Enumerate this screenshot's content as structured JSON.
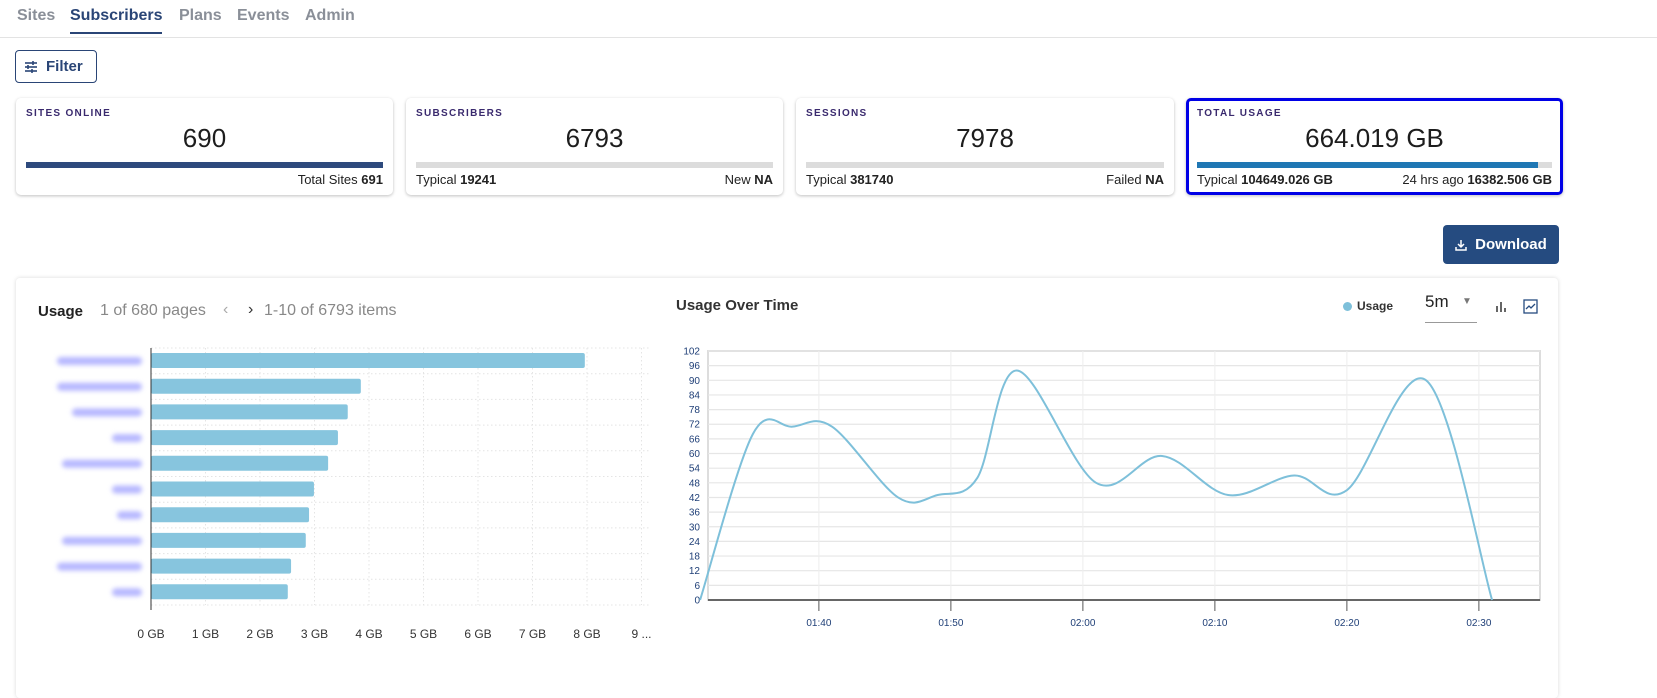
{
  "nav": {
    "tabs": [
      {
        "label": "Sites"
      },
      {
        "label": "Subscribers",
        "active": true
      },
      {
        "label": "Plans"
      },
      {
        "label": "Events"
      },
      {
        "label": "Admin"
      }
    ]
  },
  "filter": {
    "label": "Filter",
    "icon": "sliders-icon"
  },
  "cards": [
    {
      "title": "SITES ONLINE",
      "value": "690",
      "progress": 0.999,
      "bar_color": "#2e4a7d",
      "left_label": "",
      "left_value": "",
      "right_label": "Total Sites",
      "right_value": "691"
    },
    {
      "title": "SUBSCRIBERS",
      "value": "6793",
      "progress": 0,
      "bar_color": "#2e4a7d",
      "left_label": "Typical",
      "left_value": "19241",
      "right_label": "New",
      "right_value": "NA"
    },
    {
      "title": "SESSIONS",
      "value": "7978",
      "progress": 0,
      "bar_color": "#2e4a7d",
      "left_label": "Typical",
      "left_value": "381740",
      "right_label": "Failed",
      "right_value": "NA"
    },
    {
      "title": "TOTAL USAGE",
      "value": "664.019 GB",
      "progress": 0.96,
      "bar_color": "#1f77b4",
      "left_label": "Typical",
      "left_value": "104649.026 GB",
      "right_label": "24 hrs ago",
      "right_value": "16382.506 GB",
      "selected": true
    }
  ],
  "download": {
    "label": "Download",
    "icon": "download-icon"
  },
  "usage": {
    "title": "Usage",
    "pages": "1 of 680 pages",
    "items": "1-10 of 6793 items"
  },
  "usage_over_time": {
    "title": "Usage Over Time",
    "legend": "Usage",
    "interval": "5m"
  },
  "chart_data": [
    {
      "type": "bar",
      "orientation": "horizontal",
      "categories_blurred": true,
      "values": [
        7.96,
        3.85,
        3.61,
        3.43,
        3.25,
        2.99,
        2.9,
        2.84,
        2.57,
        2.51
      ],
      "xlim": [
        0,
        9
      ],
      "x_ticks": [
        "0 GB",
        "1 GB",
        "2 GB",
        "3 GB",
        "4 GB",
        "5 GB",
        "6 GB",
        "7 GB",
        "8 GB",
        "9 ..."
      ],
      "color": "#87c5de",
      "grid": true
    },
    {
      "type": "line",
      "series": [
        {
          "name": "Usage",
          "x": [
            "01:31",
            "01:35",
            "01:38",
            "01:41",
            "01:46",
            "01:49",
            "01:52",
            "01:55",
            "02:01",
            "02:06",
            "02:11",
            "02:16",
            "02:20",
            "02:26",
            "02:31"
          ],
          "values": [
            0,
            68,
            71,
            71,
            42,
            43,
            50,
            94,
            48,
            59,
            43,
            51,
            45,
            90,
            0
          ]
        }
      ],
      "ylim": [
        0,
        102
      ],
      "y_ticks": [
        0,
        6,
        12,
        18,
        24,
        30,
        36,
        42,
        48,
        54,
        60,
        66,
        72,
        78,
        84,
        90,
        96,
        102
      ],
      "x_ticks": [
        "01:40",
        "01:50",
        "02:00",
        "02:10",
        "02:20",
        "02:30"
      ],
      "color": "#7ec0da",
      "grid": true
    }
  ]
}
